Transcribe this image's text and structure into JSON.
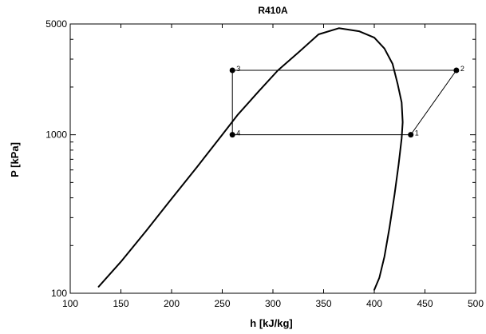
{
  "chart_data": {
    "type": "line",
    "title": "R410A",
    "xlabel": "h [kJ/kg]",
    "ylabel": "P [kPa]",
    "xlim": [
      100,
      500
    ],
    "ylim": [
      100,
      5000
    ],
    "yscale": "log",
    "x_ticks": [
      100,
      150,
      200,
      250,
      300,
      350,
      400,
      450,
      500
    ],
    "y_ticks": [
      100,
      1000,
      5000
    ],
    "grid": false,
    "legend": "none",
    "saturation_dome": {
      "x": [
        128,
        150,
        175,
        200,
        225,
        250,
        265,
        285,
        305,
        325,
        345,
        365,
        385,
        400,
        410,
        418,
        423,
        427,
        428,
        427,
        424,
        420,
        415,
        410,
        405,
        400
      ],
      "y": [
        110,
        158,
        248,
        395,
        625,
        1000,
        1330,
        1850,
        2550,
        3300,
        4300,
        4700,
        4500,
        4100,
        3500,
        2800,
        2100,
        1600,
        1200,
        950,
        650,
        420,
        260,
        170,
        125,
        105
      ]
    },
    "cycle": {
      "points": [
        {
          "label": "1",
          "h": 436,
          "P": 1000
        },
        {
          "label": "2",
          "h": 481,
          "P": 2550
        },
        {
          "label": "3",
          "h": 260,
          "P": 2550
        },
        {
          "label": "4",
          "h": 260,
          "P": 1000
        }
      ],
      "path_order": [
        "1",
        "2",
        "3",
        "4",
        "1"
      ]
    },
    "colors": {
      "line": "#000000",
      "background": "#ffffff"
    }
  }
}
